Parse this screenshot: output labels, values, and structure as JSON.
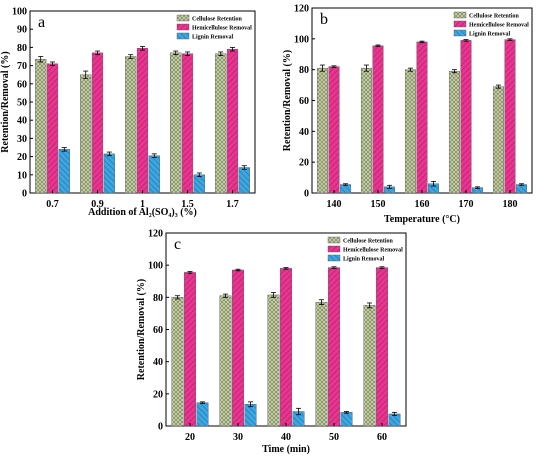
{
  "figure": {
    "colors": {
      "cellulose": "#c8d2a8",
      "hemicellulose": "#e8358f",
      "lignin": "#3ba6e0",
      "error_bar": "#000000"
    }
  },
  "chart_data": [
    {
      "panel": "a",
      "type": "bar",
      "pattern": "grouped",
      "xlabel": "Addition of Al₂(SO₄)₃ (%)",
      "ylabel": "Retention/Removal (%)",
      "categories": [
        "0.7",
        "0.9",
        "1",
        "1.5",
        "1.7"
      ],
      "ylim": [
        0,
        100
      ],
      "yticks": [
        0,
        10,
        20,
        30,
        40,
        50,
        60,
        70,
        80,
        90,
        100
      ],
      "legend_position": "top-right",
      "series": [
        {
          "name": "Cellulose Retention",
          "color": "#c8d2a8",
          "values": [
            73.5,
            65,
            75,
            77,
            76.5
          ],
          "errors": [
            1.5,
            2,
            1,
            1,
            1
          ]
        },
        {
          "name": "Hemicellulose Removal",
          "color": "#e8358f",
          "values": [
            71,
            77,
            79.5,
            76.5,
            79
          ],
          "errors": [
            1,
            1,
            1,
            1,
            1
          ]
        },
        {
          "name": "Lignin Removal",
          "color": "#3ba6e0",
          "values": [
            24,
            21.5,
            20.5,
            10,
            14
          ],
          "errors": [
            1,
            1,
            1,
            1,
            1
          ]
        }
      ]
    },
    {
      "panel": "b",
      "type": "bar",
      "pattern": "grouped",
      "xlabel": "Temperature (°C)",
      "ylabel": "Retention/Removal (%)",
      "categories": [
        "140",
        "150",
        "160",
        "170",
        "180"
      ],
      "ylim": [
        0,
        120
      ],
      "yticks": [
        0,
        20,
        40,
        60,
        80,
        100,
        120
      ],
      "legend_position": "top-right",
      "series": [
        {
          "name": "Cellulose Retention",
          "color": "#c8d2a8",
          "values": [
            81,
            81,
            80,
            79,
            69
          ],
          "errors": [
            2,
            2,
            1,
            1,
            1
          ]
        },
        {
          "name": "Hemicellulose Removal",
          "color": "#e8358f",
          "values": [
            82,
            95.5,
            98,
            99,
            99.5
          ],
          "errors": [
            0.5,
            0.5,
            0.5,
            0.5,
            0.5
          ]
        },
        {
          "name": "Lignin Removal",
          "color": "#3ba6e0",
          "values": [
            5.5,
            4,
            6,
            3.5,
            5.5
          ],
          "errors": [
            0.5,
            1,
            1.5,
            0.5,
            0.5
          ]
        }
      ]
    },
    {
      "panel": "c",
      "type": "bar",
      "pattern": "grouped",
      "xlabel": "Time (min)",
      "ylabel": "Retention/Removal (%)",
      "categories": [
        "20",
        "30",
        "40",
        "50",
        "60"
      ],
      "ylim": [
        0,
        120
      ],
      "yticks": [
        0,
        20,
        40,
        60,
        80,
        100,
        120
      ],
      "legend_position": "top-right",
      "series": [
        {
          "name": "Cellulose Retention",
          "color": "#c8d2a8",
          "values": [
            80,
            81,
            81.5,
            77,
            75
          ],
          "errors": [
            1,
            1,
            1.5,
            1.5,
            1.5
          ]
        },
        {
          "name": "Hemicellulose Removal",
          "color": "#e8358f",
          "values": [
            95.5,
            97,
            98,
            98.5,
            98.5
          ],
          "errors": [
            0.5,
            0.5,
            0.5,
            0.5,
            0.5
          ]
        },
        {
          "name": "Lignin Removal",
          "color": "#3ba6e0",
          "values": [
            14.5,
            13.5,
            9,
            8.5,
            7.5
          ],
          "errors": [
            0.5,
            1.5,
            2,
            0.5,
            1
          ]
        }
      ]
    }
  ]
}
